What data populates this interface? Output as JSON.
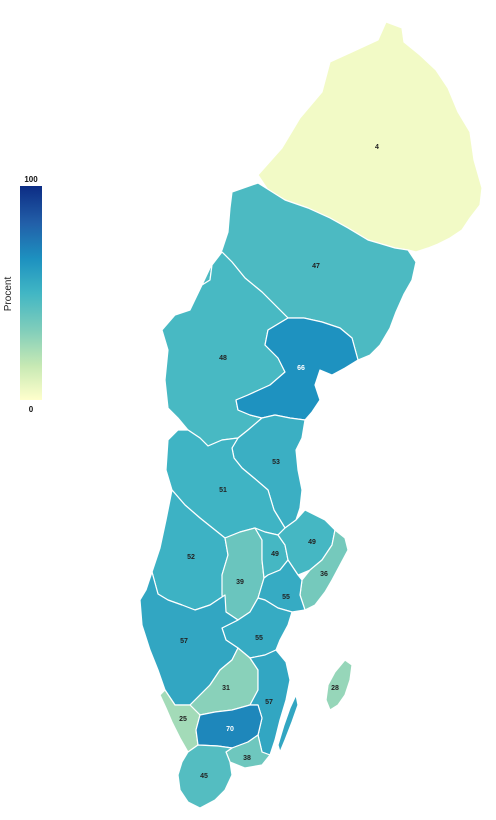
{
  "legend": {
    "title": "Procent",
    "max_label": "100",
    "min_label": "0",
    "colors": [
      "#ffffcc",
      "#c7e9b4",
      "#7fcdbb",
      "#41b6c4",
      "#1d91c0",
      "#225ea8",
      "#0c2c84"
    ],
    "min": 0,
    "max": 100
  },
  "regions": [
    {
      "id": "norrbotten",
      "value": 4,
      "label": "4"
    },
    {
      "id": "vasterbotten",
      "value": 47,
      "label": "47"
    },
    {
      "id": "jamtland",
      "value": 48,
      "label": "48"
    },
    {
      "id": "vasternorrland",
      "value": 66,
      "label": "66"
    },
    {
      "id": "gavleborg",
      "value": 53,
      "label": "53"
    },
    {
      "id": "dalarna",
      "value": 51,
      "label": "51"
    },
    {
      "id": "varmland",
      "value": 52,
      "label": "52"
    },
    {
      "id": "orebro",
      "value": 39,
      "label": "39"
    },
    {
      "id": "vastmanland",
      "value": 49,
      "label": "49"
    },
    {
      "id": "uppsala",
      "value": 49,
      "label": "49"
    },
    {
      "id": "stockholm",
      "value": 36,
      "label": "36"
    },
    {
      "id": "sodermanland",
      "value": 55,
      "label": "55"
    },
    {
      "id": "ostergotland",
      "value": 55,
      "label": "55"
    },
    {
      "id": "vastra-gotaland",
      "value": 57,
      "label": "57"
    },
    {
      "id": "jonkoping",
      "value": 31,
      "label": "31"
    },
    {
      "id": "kalmar",
      "value": 57,
      "label": "57"
    },
    {
      "id": "gotland",
      "value": 28,
      "label": "28"
    },
    {
      "id": "halland",
      "value": 25,
      "label": "25"
    },
    {
      "id": "kronoberg",
      "value": 70,
      "label": "70"
    },
    {
      "id": "blekinge",
      "value": 38,
      "label": "38"
    },
    {
      "id": "skane",
      "value": 45,
      "label": "45"
    }
  ]
}
